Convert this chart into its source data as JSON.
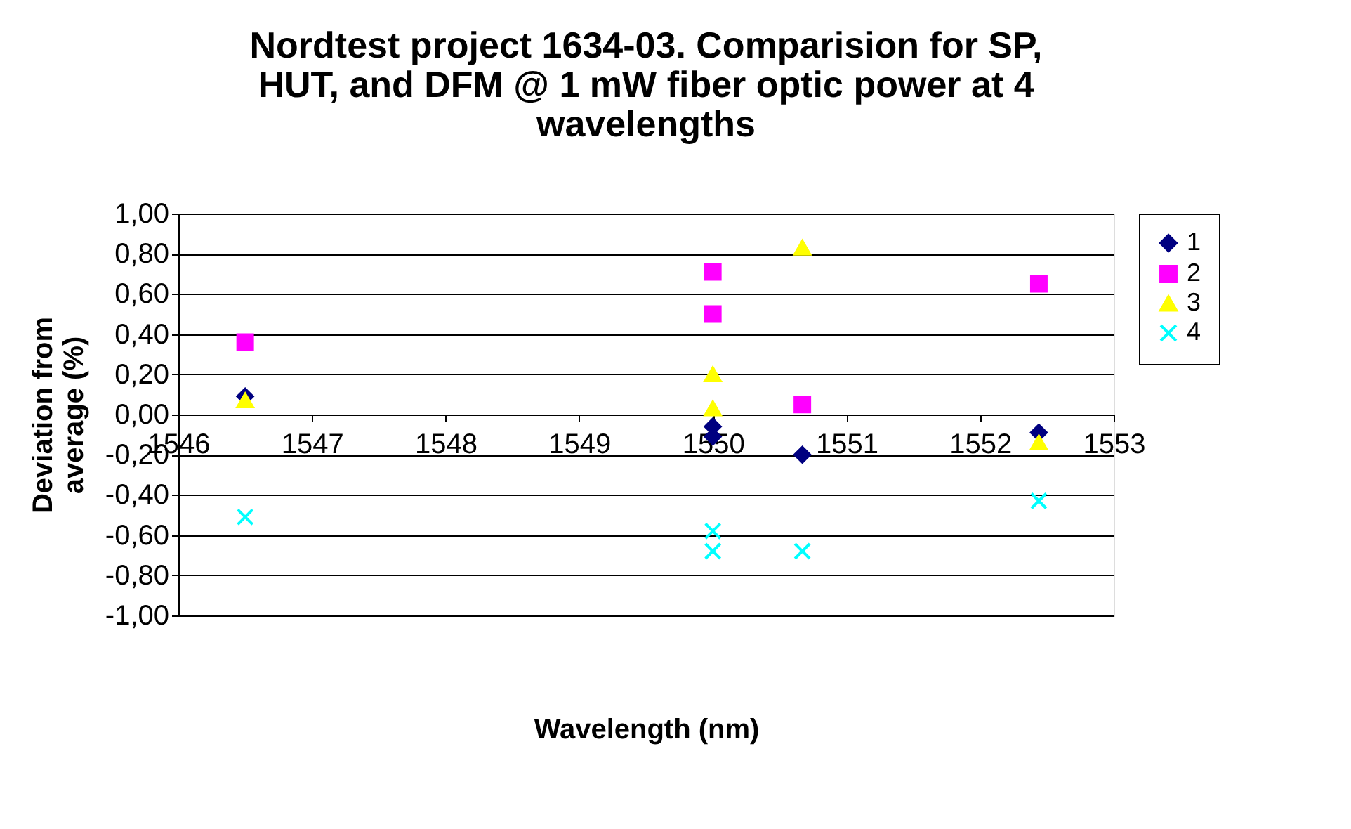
{
  "chart_data": {
    "type": "scatter",
    "title": "Nordtest project 1634-03. Comparision for SP, HUT, and DFM @ 1 mW fiber optic power at 4 wavelengths",
    "xlabel": "Wavelength (nm)",
    "ylabel": "Deviation from average (%)",
    "series": [
      {
        "name": "1",
        "color": "#000080",
        "marker": "diamond",
        "x": [
          1546.5,
          1550,
          1550,
          1550.67,
          1552.44
        ],
        "values": [
          0.09,
          -0.06,
          -0.11,
          -0.2,
          -0.09
        ]
      },
      {
        "name": "2",
        "color": "#ff00ff",
        "marker": "square",
        "x": [
          1546.5,
          1550,
          1550,
          1550.67,
          1552.44
        ],
        "values": [
          0.36,
          0.71,
          0.5,
          0.05,
          0.65
        ]
      },
      {
        "name": "3",
        "color": "#ffff00",
        "marker": "triangle",
        "x": [
          1546.5,
          1550,
          1550,
          1550.67,
          1552.44
        ],
        "values": [
          0.07,
          0.2,
          0.03,
          0.83,
          -0.14
        ]
      },
      {
        "name": "4",
        "color": "#00ffff",
        "marker": "cross",
        "x": [
          1546.5,
          1550,
          1550,
          1550.67,
          1552.44
        ],
        "values": [
          -0.51,
          -0.58,
          -0.68,
          -0.68,
          -0.43
        ]
      }
    ],
    "xlim": [
      1546,
      1553
    ],
    "xticks": [
      1546,
      1547,
      1548,
      1549,
      1550,
      1551,
      1552,
      1553
    ],
    "ylim": [
      -1,
      1
    ],
    "yticks": [
      {
        "value": -1,
        "label": "-1,00"
      },
      {
        "value": -0.8,
        "label": "-0,80"
      },
      {
        "value": -0.6,
        "label": "-0,60"
      },
      {
        "value": -0.4,
        "label": "-0,40"
      },
      {
        "value": -0.2,
        "label": "-0,20"
      },
      {
        "value": 0,
        "label": "0,00"
      },
      {
        "value": 0.2,
        "label": "0,20"
      },
      {
        "value": 0.4,
        "label": "0,40"
      },
      {
        "value": 0.6,
        "label": "0,60"
      },
      {
        "value": 0.8,
        "label": "0,80"
      },
      {
        "value": 1,
        "label": "1,00"
      }
    ],
    "grid": "y",
    "legend": "right"
  }
}
